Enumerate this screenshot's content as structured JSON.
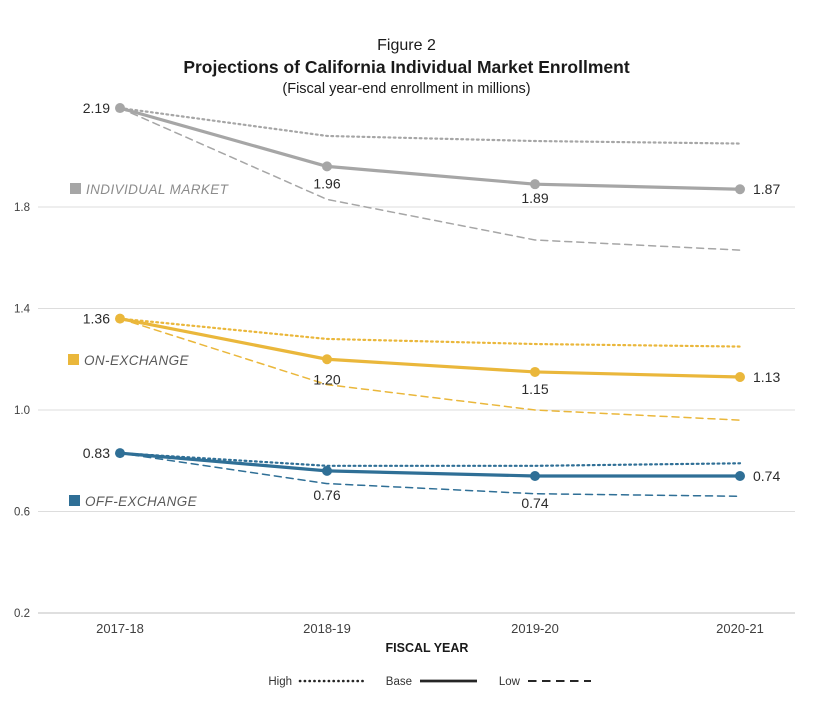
{
  "figure": {
    "label": "Figure 2",
    "title": "Projections of California Individual Market Enrollment",
    "subtitle": "(Fiscal year-end enrollment in millions)"
  },
  "chart_data": {
    "type": "line",
    "x_categories": [
      "2017-18",
      "2018-19",
      "2019-20",
      "2020-21"
    ],
    "xlabel": "FISCAL YEAR",
    "ylim": [
      0.2,
      2.3
    ],
    "yticks": [
      1.8,
      1.4,
      1.0,
      0.6,
      0.2
    ],
    "grid": true,
    "legend_position": "bottom",
    "scenario_legend": [
      {
        "label": "High",
        "style": "dotted"
      },
      {
        "label": "Base",
        "style": "solid"
      },
      {
        "label": "Low",
        "style": "dashed"
      }
    ],
    "groups": [
      {
        "name": "INDIVIDUAL MARKET",
        "color": "#A6A6A6",
        "label_color": "#8C8C8C",
        "series": [
          {
            "name": "High",
            "style": "dotted",
            "values": [
              2.19,
              2.08,
              2.06,
              2.05
            ]
          },
          {
            "name": "Base",
            "style": "solid",
            "values": [
              2.19,
              1.96,
              1.89,
              1.87
            ],
            "labels": [
              "2.19",
              "1.96",
              "1.89",
              "1.87"
            ]
          },
          {
            "name": "Low",
            "style": "dashed",
            "values": [
              2.19,
              1.83,
              1.67,
              1.63
            ]
          }
        ]
      },
      {
        "name": "ON-EXCHANGE",
        "color": "#EAB73B",
        "label_color": "#595959",
        "series": [
          {
            "name": "High",
            "style": "dotted",
            "values": [
              1.36,
              1.28,
              1.26,
              1.25
            ]
          },
          {
            "name": "Base",
            "style": "solid",
            "values": [
              1.36,
              1.2,
              1.15,
              1.13
            ],
            "labels": [
              "1.36",
              "1.20",
              "1.15",
              "1.13"
            ]
          },
          {
            "name": "Low",
            "style": "dashed",
            "values": [
              1.36,
              1.1,
              1.0,
              0.96
            ]
          }
        ]
      },
      {
        "name": "OFF-EXCHANGE",
        "color": "#2F6F96",
        "label_color": "#595959",
        "series": [
          {
            "name": "High",
            "style": "dotted",
            "values": [
              0.83,
              0.78,
              0.78,
              0.79
            ]
          },
          {
            "name": "Base",
            "style": "solid",
            "values": [
              0.83,
              0.76,
              0.74,
              0.74
            ],
            "labels": [
              "0.83",
              "0.76",
              "0.74",
              "0.74"
            ]
          },
          {
            "name": "Low",
            "style": "dashed",
            "values": [
              0.83,
              0.71,
              0.67,
              0.66
            ]
          }
        ]
      }
    ]
  }
}
